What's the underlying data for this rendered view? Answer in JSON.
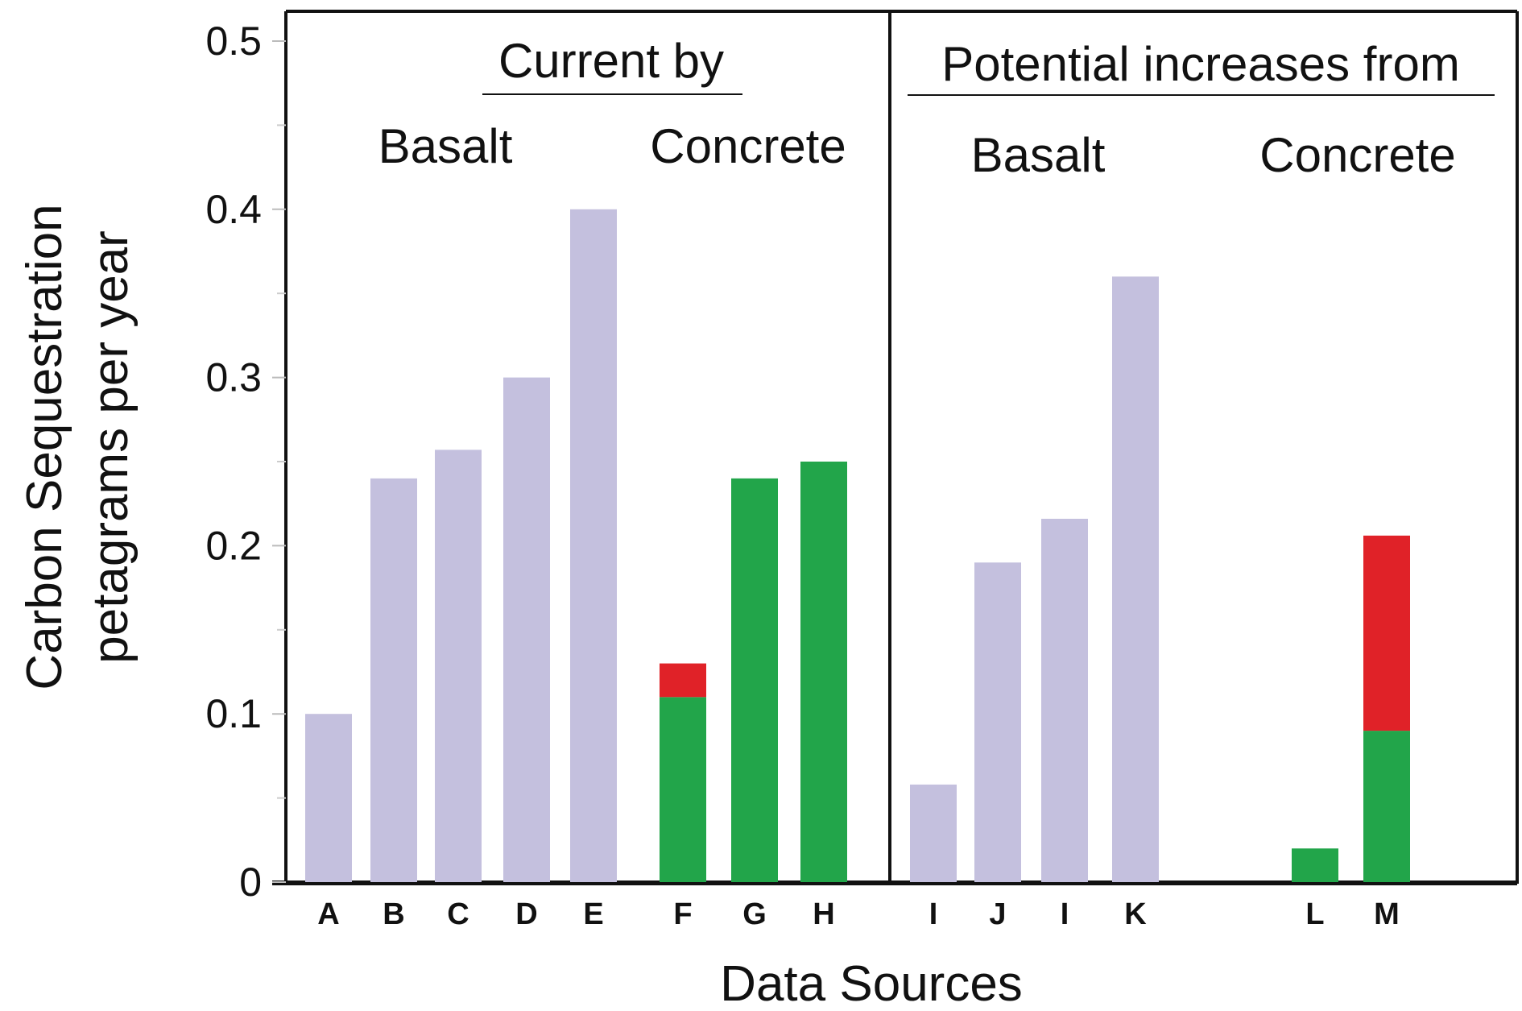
{
  "chart_data": {
    "type": "bar",
    "stacked": true,
    "title": "",
    "xlabel": "Data Sources",
    "ylabel": [
      "Carbon Sequestration",
      "petagrams per year"
    ],
    "ylim": [
      0,
      0.5
    ],
    "yticks": [
      "0",
      "0.1",
      "0.2",
      "0.3",
      "0.4",
      "0.5"
    ],
    "grid": false,
    "panels": [
      {
        "header": "Current by",
        "groups": [
          {
            "label": "Basalt"
          },
          {
            "label": "Concrete"
          }
        ]
      },
      {
        "header": "Potential increases from",
        "groups": [
          {
            "label": "Basalt"
          },
          {
            "label": "Concrete"
          }
        ]
      }
    ],
    "categories": [
      "A",
      "B",
      "C",
      "D",
      "E",
      "F",
      "G",
      "H",
      "I",
      "J",
      "I",
      "K",
      "L",
      "M"
    ],
    "bars": [
      {
        "label": "A",
        "panel": 0,
        "group": "Basalt",
        "segments": [
          {
            "value": 0.1,
            "color": "#c4c0de"
          }
        ]
      },
      {
        "label": "B",
        "panel": 0,
        "group": "Basalt",
        "segments": [
          {
            "value": 0.24,
            "color": "#c4c0de"
          }
        ]
      },
      {
        "label": "C",
        "panel": 0,
        "group": "Basalt",
        "segments": [
          {
            "value": 0.257,
            "color": "#c4c0de"
          }
        ]
      },
      {
        "label": "D",
        "panel": 0,
        "group": "Basalt",
        "segments": [
          {
            "value": 0.3,
            "color": "#c4c0de"
          }
        ]
      },
      {
        "label": "E",
        "panel": 0,
        "group": "Basalt",
        "segments": [
          {
            "value": 0.4,
            "color": "#c4c0de"
          }
        ]
      },
      {
        "label": "F",
        "panel": 0,
        "group": "Concrete",
        "segments": [
          {
            "value": 0.11,
            "color": "#22a54a"
          },
          {
            "value": 0.02,
            "color": "#e02228"
          }
        ]
      },
      {
        "label": "G",
        "panel": 0,
        "group": "Concrete",
        "segments": [
          {
            "value": 0.24,
            "color": "#22a54a"
          }
        ]
      },
      {
        "label": "H",
        "panel": 0,
        "group": "Concrete",
        "segments": [
          {
            "value": 0.25,
            "color": "#22a54a"
          }
        ]
      },
      {
        "label": "I",
        "panel": 1,
        "group": "Basalt",
        "segments": [
          {
            "value": 0.058,
            "color": "#c4c0de"
          }
        ]
      },
      {
        "label": "J",
        "panel": 1,
        "group": "Basalt",
        "segments": [
          {
            "value": 0.19,
            "color": "#c4c0de"
          }
        ]
      },
      {
        "label": "I",
        "panel": 1,
        "group": "Basalt",
        "segments": [
          {
            "value": 0.216,
            "color": "#c4c0de"
          }
        ]
      },
      {
        "label": "K",
        "panel": 1,
        "group": "Basalt",
        "segments": [
          {
            "value": 0.36,
            "color": "#c4c0de"
          }
        ]
      },
      {
        "label": "L",
        "panel": 1,
        "group": "Concrete",
        "segments": [
          {
            "value": 0.02,
            "color": "#22a54a"
          }
        ]
      },
      {
        "label": "M",
        "panel": 1,
        "group": "Concrete",
        "segments": [
          {
            "value": 0.09,
            "color": "#22a54a"
          },
          {
            "value": 0.116,
            "color": "#e02228"
          }
        ]
      }
    ],
    "colors": {
      "basalt": "#c4c0de",
      "concrete_green": "#22a54a",
      "concrete_red": "#e02228"
    }
  }
}
